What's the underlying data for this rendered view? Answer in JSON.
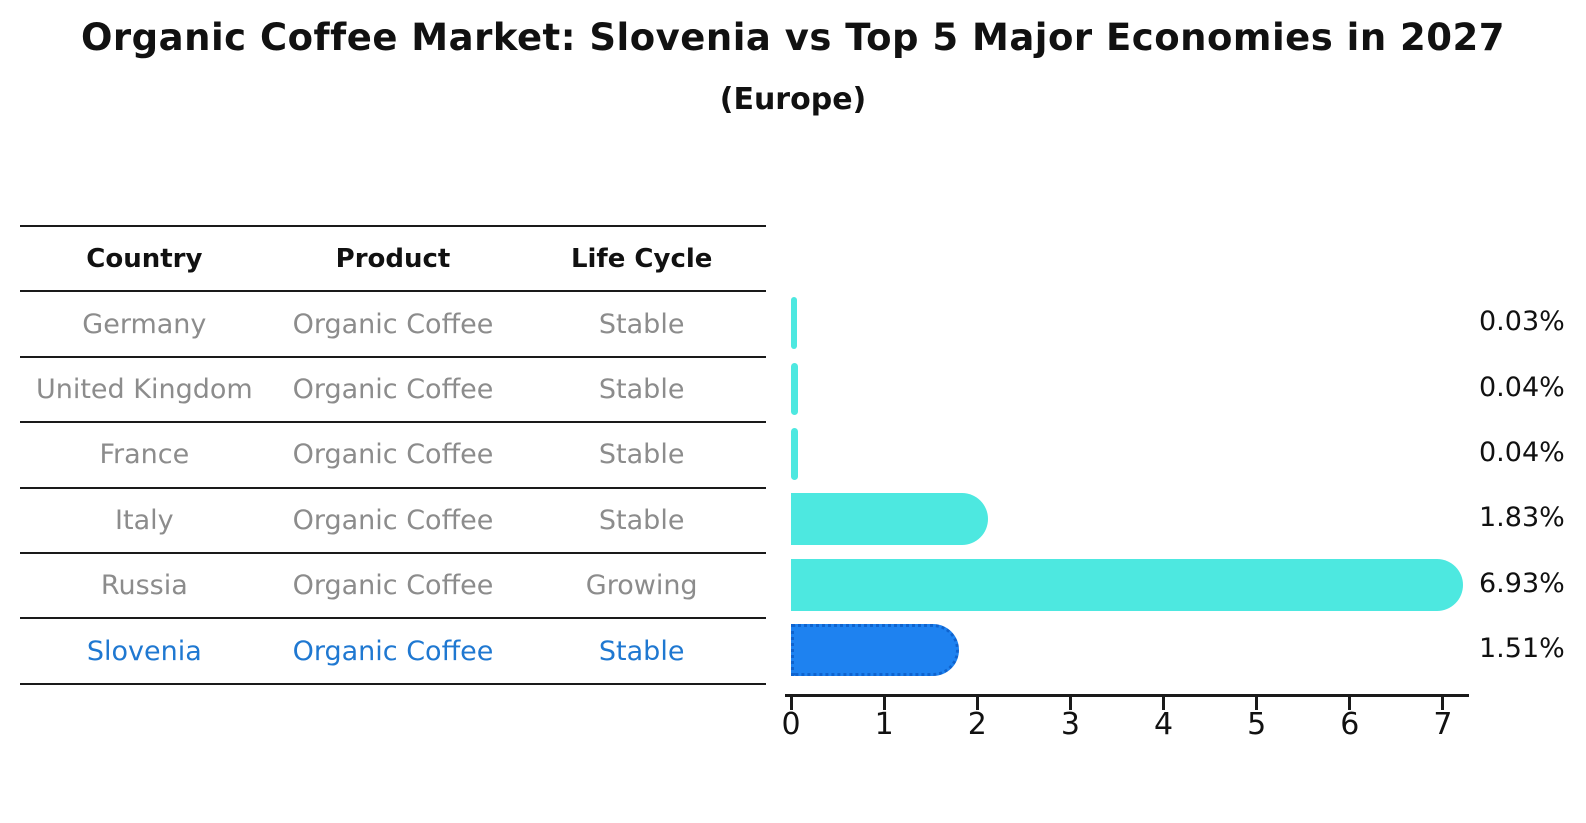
{
  "title": "Organic Coffee Market: Slovenia vs Top 5 Major Economies in 2027",
  "subtitle": "(Europe)",
  "table": {
    "headers": [
      "Country",
      "Product",
      "Life Cycle"
    ],
    "rows": [
      {
        "country": "Germany",
        "product": "Organic Coffee",
        "life_cycle": "Stable",
        "highlighted": false
      },
      {
        "country": "United Kingdom",
        "product": "Organic Coffee",
        "life_cycle": "Stable",
        "highlighted": false
      },
      {
        "country": "France",
        "product": "Organic Coffee",
        "life_cycle": "Stable",
        "highlighted": false
      },
      {
        "country": "Italy",
        "product": "Organic Coffee",
        "life_cycle": "Stable",
        "highlighted": false
      },
      {
        "country": "Russia",
        "product": "Organic Coffee",
        "life_cycle": "Growing",
        "highlighted": false
      },
      {
        "country": "Slovenia",
        "product": "Organic Coffee",
        "life_cycle": "Stable",
        "highlighted": true
      }
    ]
  },
  "chart_data": {
    "type": "bar",
    "orientation": "horizontal",
    "categories": [
      "Germany",
      "United Kingdom",
      "France",
      "Italy",
      "Russia",
      "Slovenia"
    ],
    "values": [
      0.03,
      0.04,
      0.04,
      1.83,
      6.93,
      1.51
    ],
    "value_labels": [
      "0.03%",
      "0.04%",
      "0.04%",
      "1.83%",
      "6.93%",
      "1.51%"
    ],
    "x_ticks": [
      "0",
      "1",
      "2",
      "3",
      "4",
      "5",
      "6",
      "7"
    ],
    "xlim": [
      0,
      7.3
    ],
    "grid": false,
    "legend": "none",
    "bar_color": "#4DE8E0",
    "highlight_index": 5,
    "highlight_color": "#1E82F0",
    "highlight_border_style": "dotted",
    "highlight_border_color": "#0F63CE"
  },
  "colors": {
    "row_text": "#8C8C8C",
    "highlight_text": "#1F78D1",
    "header_text": "#111111",
    "line": "#1a1a1a",
    "background": "#ffffff"
  }
}
